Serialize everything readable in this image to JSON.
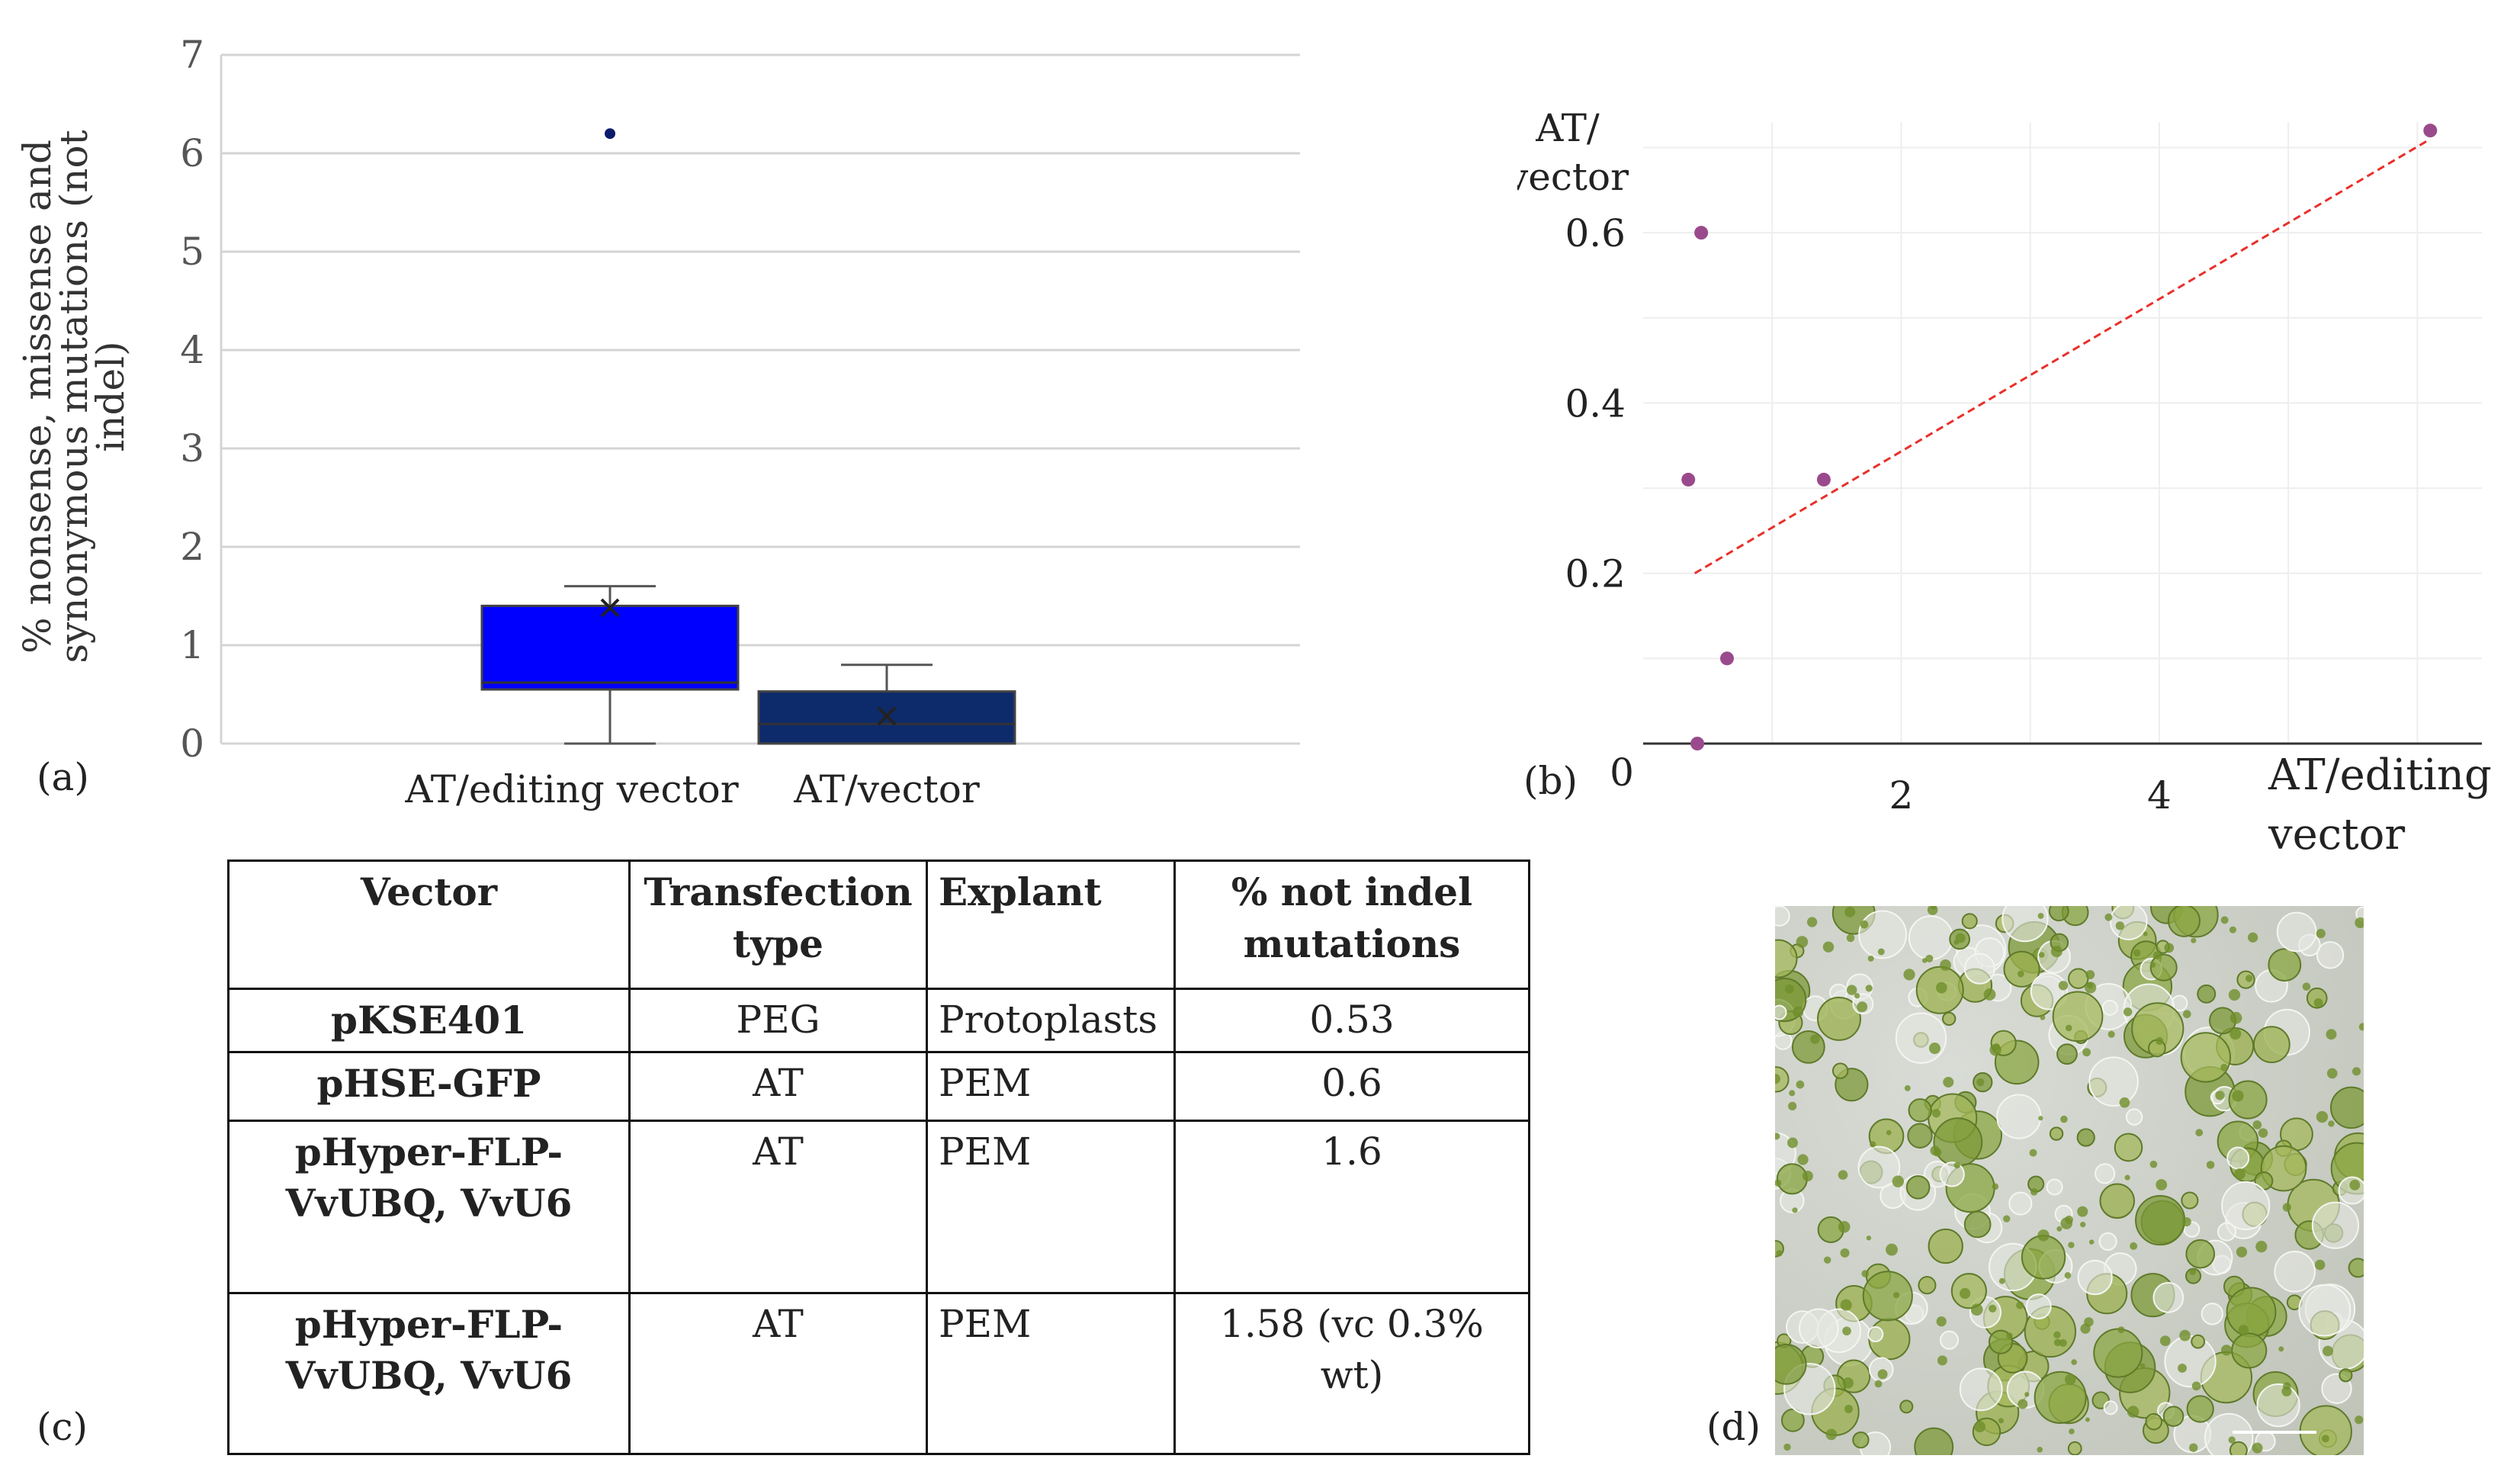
{
  "panels": {
    "a": "(a)",
    "b": "(b)",
    "c": "(c)",
    "d": "(d)"
  },
  "chart_data": [
    {
      "type": "box",
      "ylabel_lines": [
        "% nonsense, missense and",
        "synonymous mutations (not",
        "indel)"
      ],
      "ylim": [
        0,
        7
      ],
      "yticks": [
        0,
        1,
        2,
        3,
        4,
        5,
        6,
        7
      ],
      "grid": true,
      "categories": [
        "AT/editing vector",
        "AT/vector"
      ],
      "colors": [
        "#0000ff",
        "#0d2a6b"
      ],
      "boxes": [
        {
          "category": "AT/editing vector",
          "whisker_low": 0,
          "q1": 0.55,
          "median": 0.62,
          "q3": 1.4,
          "whisker_high": 1.6,
          "mean": 1.38,
          "outliers": [
            6.2
          ]
        },
        {
          "category": "AT/vector",
          "whisker_low": 0,
          "q1": 0,
          "median": 0.2,
          "q3": 0.53,
          "whisker_high": 0.8,
          "mean": 0.28,
          "outliers": []
        }
      ]
    },
    {
      "type": "scatter",
      "xlabel_lines": [
        "AT/editing",
        "vector"
      ],
      "ylabel_lines": [
        "AT/",
        "vector"
      ],
      "origin_label": "0",
      "xlim": [
        0,
        6.5
      ],
      "ylim": [
        0,
        0.73
      ],
      "xticks": [
        2,
        4
      ],
      "yticks": [
        0.2,
        0.4,
        0.6
      ],
      "grid": true,
      "point_color": "#9a4a8c",
      "trend_color": "#e8302a",
      "x": [
        0.35,
        0.42,
        0.45,
        0.65,
        1.4,
        6.1
      ],
      "y": [
        0.31,
        0.0,
        0.6,
        0.1,
        0.31,
        0.72
      ],
      "trendline": {
        "x": [
          0.4,
          6.1
        ],
        "y": [
          0.2,
          0.71
        ]
      }
    }
  ],
  "table": {
    "headers": [
      "Vector",
      "Transfection type",
      "Explant",
      "% not indel mutations"
    ],
    "rows": [
      {
        "vector": "pKSE401",
        "type": "PEG",
        "explant": "Protoplasts",
        "pct": "0.53"
      },
      {
        "vector": "pHSE-GFP",
        "type": "AT",
        "explant": "PEM",
        "pct": "0.6"
      },
      {
        "vector": "pHyper-FLP-VvUBQ, VvU6",
        "type": "AT",
        "explant": "PEM",
        "pct": "1.6"
      },
      {
        "vector": "pHyper-FLP-VvUBQ, VvU6",
        "type": "AT",
        "explant": "PEM",
        "pct": "1.58 (vc 0.3% wt)"
      }
    ]
  }
}
